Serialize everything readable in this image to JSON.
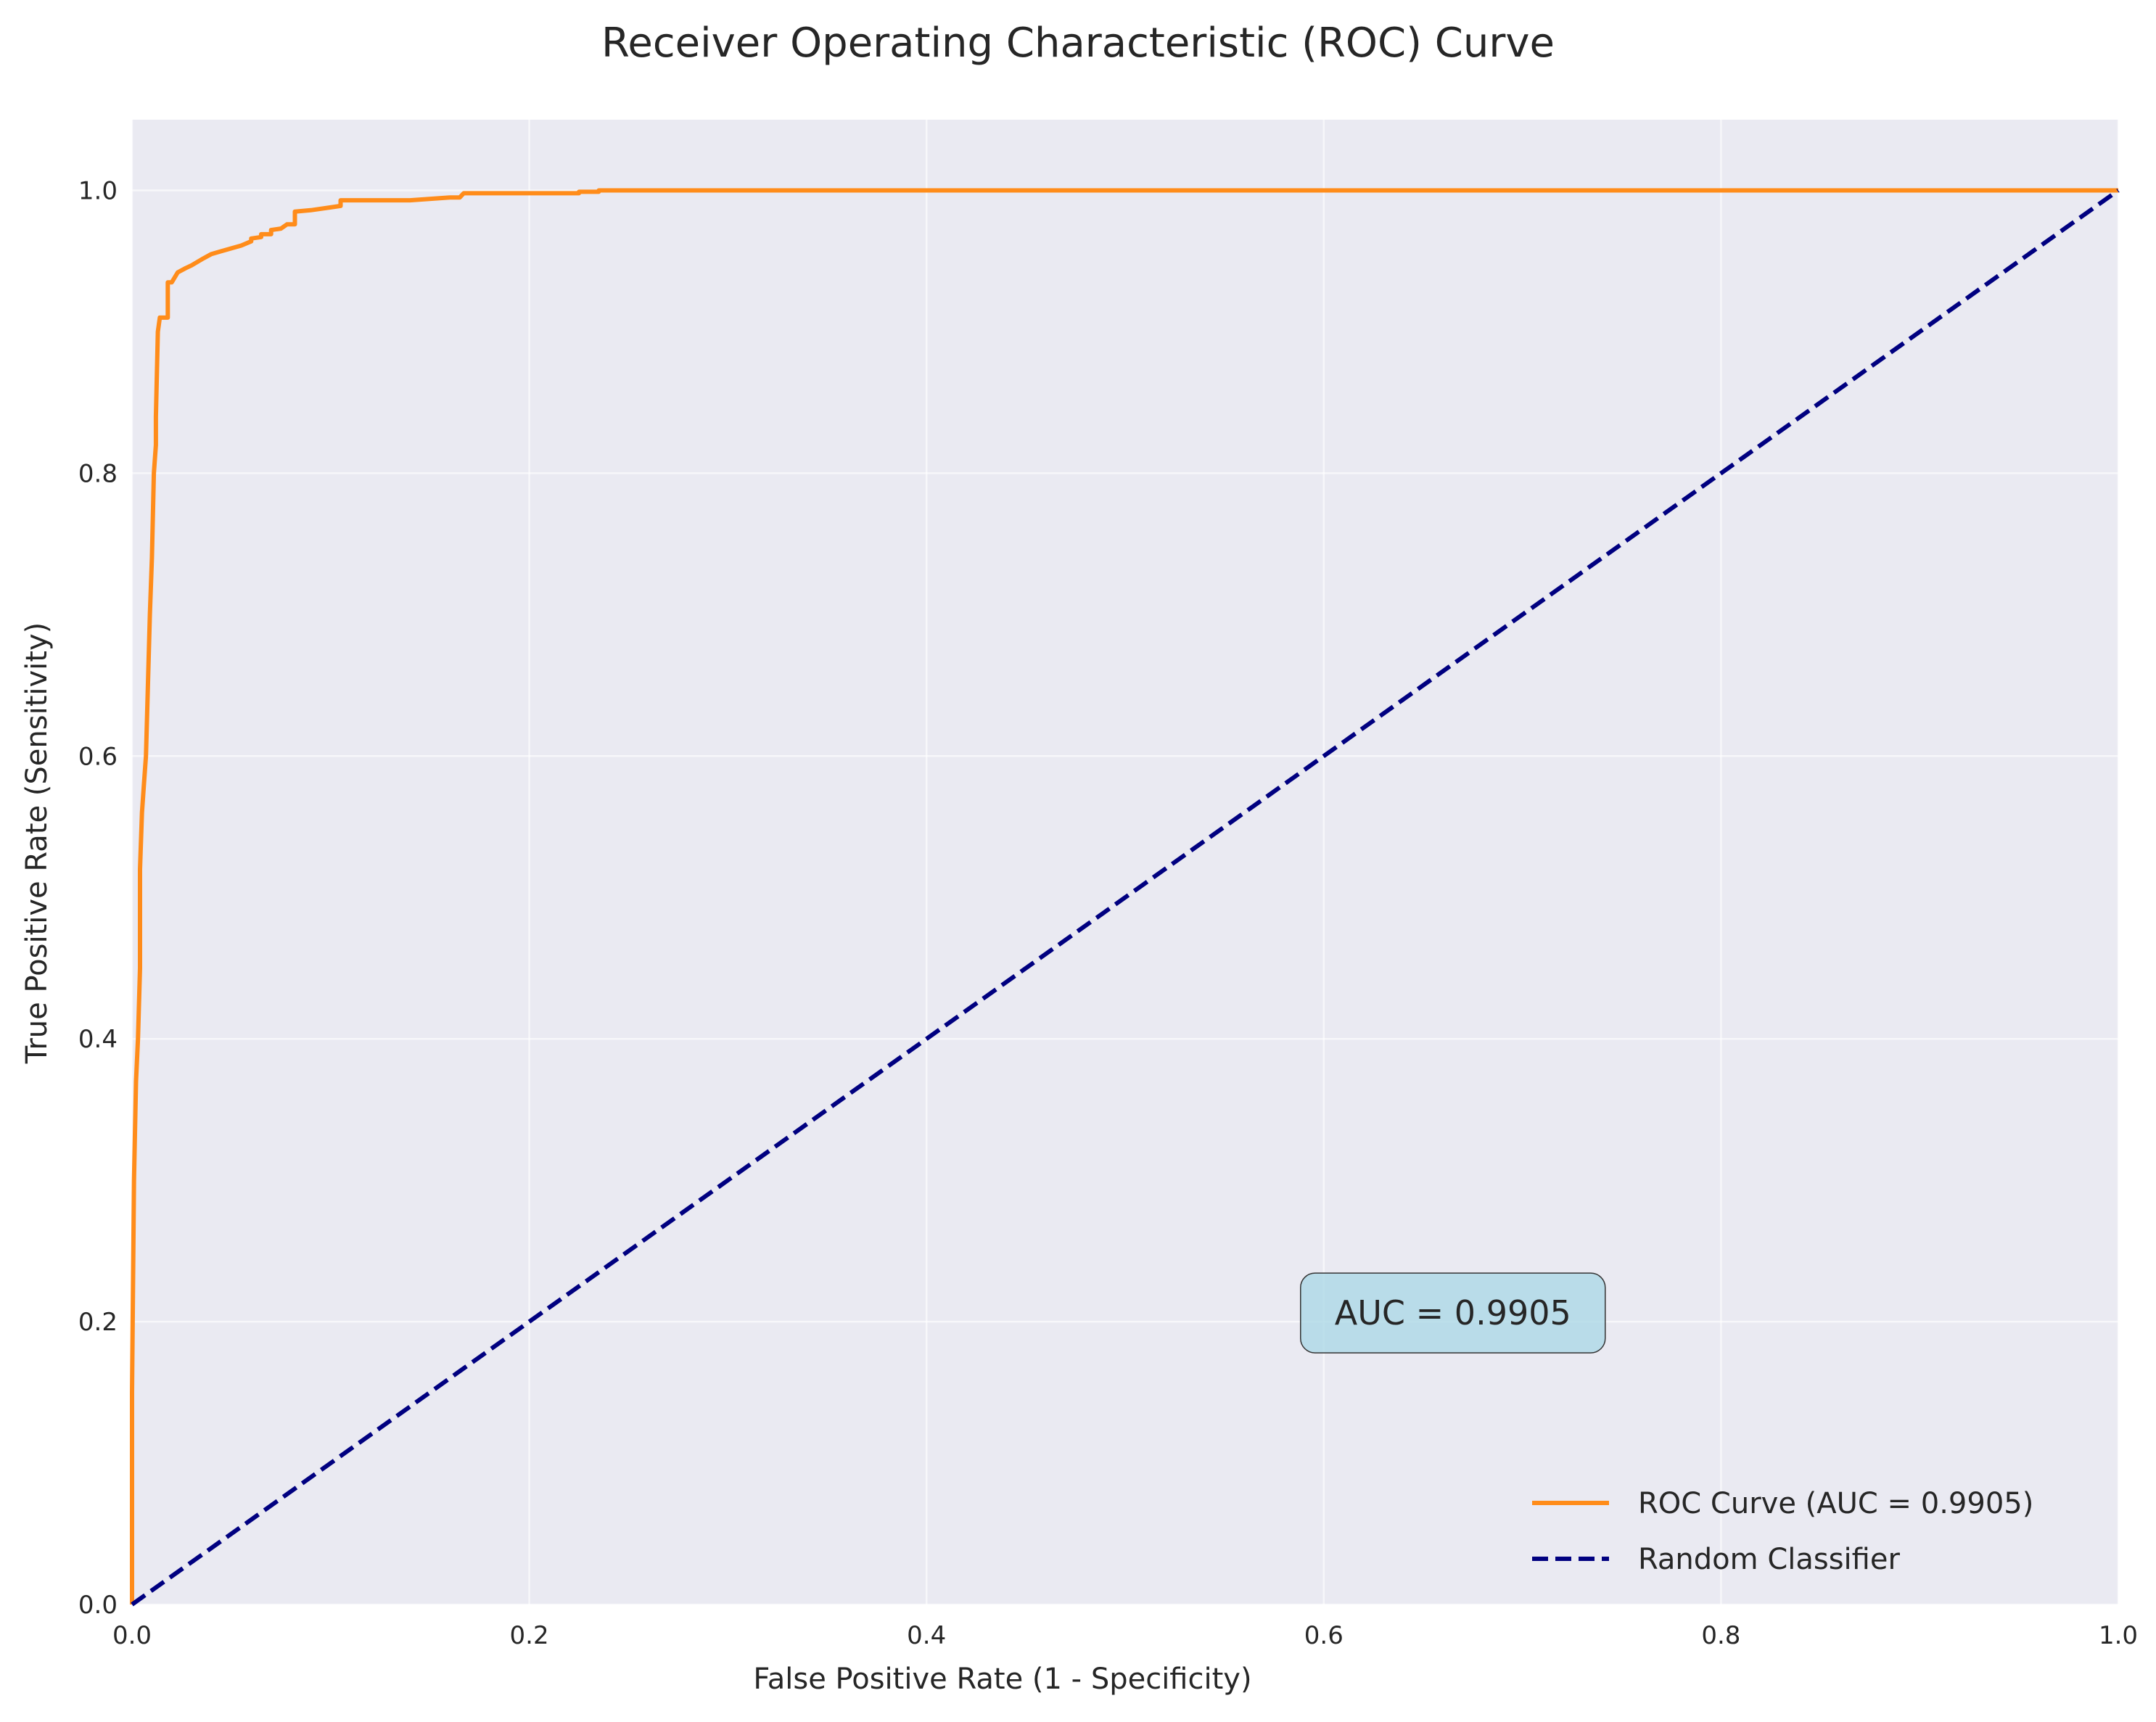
{
  "chart_data": {
    "type": "line",
    "title": "Receiver Operating Characteristic (ROC) Curve",
    "xlabel": "False Positive Rate (1 - Specificity)",
    "ylabel": "True Positive Rate (Sensitivity)",
    "xlim": [
      0.0,
      1.0
    ],
    "ylim": [
      0.0,
      1.05
    ],
    "x_ticks": [
      "0.0",
      "0.2",
      "0.4",
      "0.6",
      "0.8",
      "1.0"
    ],
    "y_ticks": [
      "0.0",
      "0.2",
      "0.4",
      "0.6",
      "0.8",
      "1.0"
    ],
    "grid": true,
    "legend_position": "lower-right",
    "background_color": "#eaeaf2",
    "series": [
      {
        "name": "ROC Curve (AUC = 0.9905)",
        "color": "#ff8c1a",
        "line_style": "solid",
        "points": [
          [
            0.0,
            0.0
          ],
          [
            0.0,
            0.15
          ],
          [
            0.001,
            0.3
          ],
          [
            0.002,
            0.37
          ],
          [
            0.003,
            0.4
          ],
          [
            0.004,
            0.45
          ],
          [
            0.004,
            0.52
          ],
          [
            0.005,
            0.56
          ],
          [
            0.006,
            0.58
          ],
          [
            0.007,
            0.6
          ],
          [
            0.008,
            0.65
          ],
          [
            0.009,
            0.7
          ],
          [
            0.01,
            0.74
          ],
          [
            0.011,
            0.8
          ],
          [
            0.012,
            0.82
          ],
          [
            0.012,
            0.84
          ],
          [
            0.013,
            0.9
          ],
          [
            0.014,
            0.91
          ],
          [
            0.018,
            0.91
          ],
          [
            0.018,
            0.935
          ],
          [
            0.02,
            0.935
          ],
          [
            0.023,
            0.942
          ],
          [
            0.027,
            0.945
          ],
          [
            0.03,
            0.947
          ],
          [
            0.036,
            0.952
          ],
          [
            0.04,
            0.955
          ],
          [
            0.045,
            0.957
          ],
          [
            0.05,
            0.959
          ],
          [
            0.055,
            0.961
          ],
          [
            0.06,
            0.964
          ],
          [
            0.06,
            0.966
          ],
          [
            0.065,
            0.967
          ],
          [
            0.065,
            0.969
          ],
          [
            0.07,
            0.969
          ],
          [
            0.07,
            0.972
          ],
          [
            0.075,
            0.973
          ],
          [
            0.078,
            0.976
          ],
          [
            0.082,
            0.976
          ],
          [
            0.082,
            0.985
          ],
          [
            0.09,
            0.986
          ],
          [
            0.1,
            0.988
          ],
          [
            0.105,
            0.989
          ],
          [
            0.105,
            0.993
          ],
          [
            0.14,
            0.993
          ],
          [
            0.16,
            0.995
          ],
          [
            0.165,
            0.995
          ],
          [
            0.167,
            0.998
          ],
          [
            0.225,
            0.998
          ],
          [
            0.225,
            0.999
          ],
          [
            0.235,
            0.999
          ],
          [
            0.235,
            1.0
          ],
          [
            1.0,
            1.0
          ]
        ]
      },
      {
        "name": "Random Classifier",
        "color": "#000080",
        "line_style": "dashed",
        "points": [
          [
            0.0,
            0.0
          ],
          [
            1.0,
            1.0
          ]
        ]
      }
    ],
    "annotation": {
      "text": "AUC = 0.9905",
      "x": 0.665,
      "y": 0.2,
      "background_color": "#add8e6"
    }
  }
}
